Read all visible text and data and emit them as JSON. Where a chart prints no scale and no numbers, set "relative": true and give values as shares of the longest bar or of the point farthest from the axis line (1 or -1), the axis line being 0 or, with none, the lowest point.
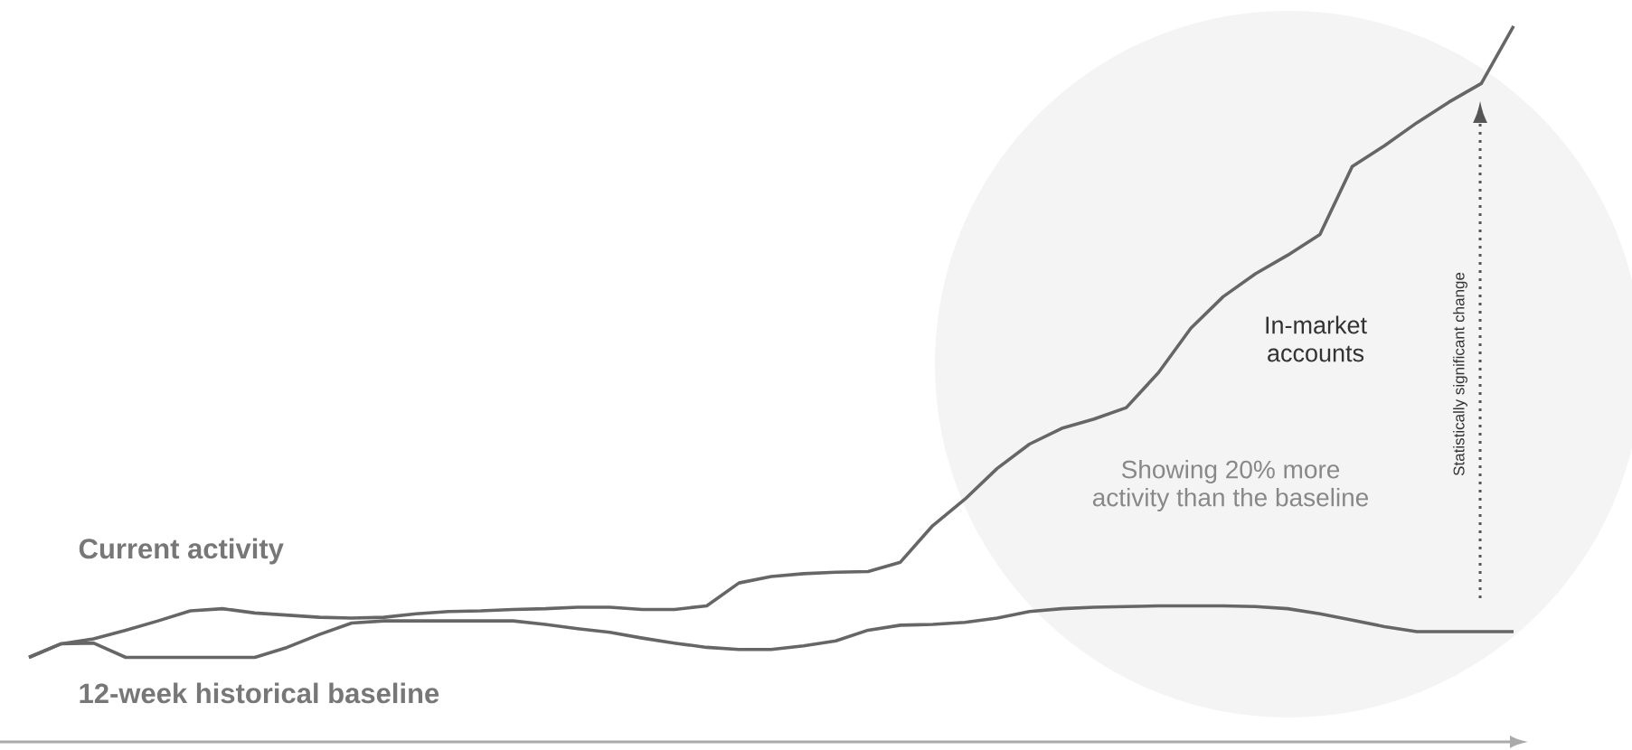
{
  "chart_data": {
    "type": "line",
    "relative": true,
    "categories": [
      null,
      null,
      null,
      null,
      null,
      null,
      null,
      null,
      null,
      null,
      null,
      null,
      null,
      null,
      null,
      null,
      null,
      null,
      null,
      null,
      null,
      null,
      null,
      null,
      null,
      null,
      null,
      null,
      null,
      null,
      null,
      null,
      null,
      null,
      null,
      null,
      null,
      null,
      null,
      null,
      null,
      null,
      null,
      null,
      null,
      null,
      null
    ],
    "series": [
      {
        "name": "Current activity",
        "color": "#666666",
        "values": [
          0.118,
          0.137,
          0.144,
          0.156,
          0.169,
          0.183,
          0.186,
          0.18,
          0.177,
          0.174,
          0.173,
          0.174,
          0.179,
          0.182,
          0.183,
          0.185,
          0.186,
          0.188,
          0.188,
          0.185,
          0.185,
          0.19,
          0.222,
          0.231,
          0.235,
          0.237,
          0.238,
          0.251,
          0.302,
          0.339,
          0.382,
          0.416,
          0.438,
          0.451,
          0.467,
          0.516,
          0.578,
          0.622,
          0.654,
          0.68,
          0.709,
          0.804,
          0.833,
          0.865,
          0.894,
          0.92,
          1
        ]
      },
      {
        "name": "12-week historical baseline",
        "color": "#666666",
        "values": [
          0.118,
          0.137,
          0.138,
          0.118,
          0.118,
          0.118,
          0.118,
          0.118,
          0.132,
          0.15,
          0.166,
          0.169,
          0.169,
          0.169,
          0.169,
          0.169,
          0.164,
          0.158,
          0.153,
          0.145,
          0.138,
          0.132,
          0.129,
          0.129,
          0.134,
          0.141,
          0.156,
          0.163,
          0.164,
          0.167,
          0.173,
          0.182,
          0.186,
          0.188,
          0.189,
          0.19,
          0.19,
          0.19,
          0.189,
          0.186,
          0.179,
          0.17,
          0.161,
          0.154,
          0.154,
          0.154,
          0.154
        ]
      }
    ],
    "annotations": [
      "In-market accounts",
      "Showing 20% more",
      "activity than the baseline",
      "Statistically significant change"
    ]
  }
}
